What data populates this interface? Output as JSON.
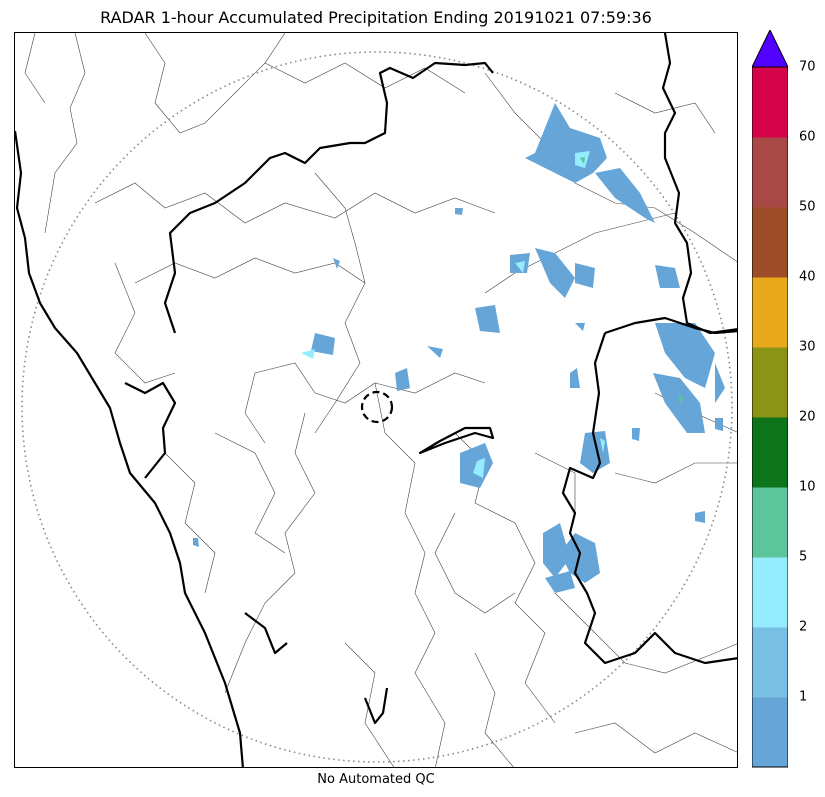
{
  "title": "RADAR 1-hour Accumulated Precipitation Ending 20191021 07:59:36",
  "footer": "No Automated QC",
  "colorbar": {
    "ticks": [
      "1",
      "2",
      "5",
      "10",
      "20",
      "30",
      "40",
      "50",
      "60",
      "70"
    ],
    "bins": [
      {
        "range": "0-1",
        "color": "#65a5d8"
      },
      {
        "range": "1-2",
        "color": "#79bee3"
      },
      {
        "range": "2-5",
        "color": "#95ecfd"
      },
      {
        "range": "5-10",
        "color": "#5cc59b"
      },
      {
        "range": "10-20",
        "color": "#0d7419"
      },
      {
        "range": "20-30",
        "color": "#8b9416"
      },
      {
        "range": "30-40",
        "color": "#e8a91a"
      },
      {
        "range": "40-50",
        "color": "#9c4c26"
      },
      {
        "range": "50-60",
        "color": "#a84945"
      },
      {
        "range": "60-70",
        "color": "#d5024a"
      }
    ],
    "extend_color": "#5101ff"
  },
  "map": {
    "range_ring": "dotted",
    "radar_site": "dashed-circle",
    "boundary_color": "#000000"
  }
}
